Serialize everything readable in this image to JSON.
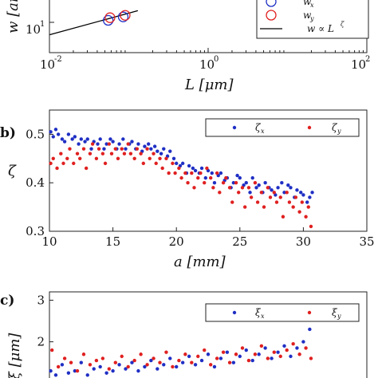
{
  "chart_data": [
    {
      "panel": "a",
      "type": "scatter",
      "title": "",
      "xlabel": "L [μm]",
      "ylabel": "w [ar",
      "xscale": "log",
      "yscale": "log",
      "xlim": [
        0.01,
        100
      ],
      "xticks": [
        0.01,
        1,
        100
      ],
      "xtick_labels": [
        "10",
        "10",
        "10"
      ],
      "xtick_exponents": [
        "-2",
        "0",
        "2"
      ],
      "ytick_labels": [
        "10"
      ],
      "ytick_exponents": [
        "1"
      ],
      "legend_position": "top-right",
      "series": [
        {
          "name": "w_x",
          "marker": "open-circle",
          "color": "#1f2fc4",
          "x": [
            0.055,
            0.085
          ],
          "y": [
            11,
            13
          ]
        },
        {
          "name": "w_y",
          "marker": "open-circle",
          "color": "#e02020",
          "x": [
            0.058,
            0.09
          ],
          "y": [
            12.5,
            14
          ]
        },
        {
          "name": "w ∝ L^ζ",
          "marker": "line",
          "color": "#000000"
        }
      ],
      "fit_line": {
        "x": [
          0.01,
          0.13
        ],
        "y": [
          5.5,
          17.5
        ]
      },
      "legend_labels": {
        "w_x": "w",
        "w_x_sub": "x",
        "w_y": "w",
        "w_y_sub": "y",
        "fit": "w ∝ L",
        "fit_sup": "ζ"
      }
    },
    {
      "panel": "b",
      "type": "scatter",
      "title": "",
      "xlabel": "a [mm]",
      "ylabel": "ζ",
      "xlim": [
        10,
        35
      ],
      "ylim": [
        0.3,
        0.55
      ],
      "xticks": [
        10,
        15,
        20,
        25,
        30,
        35
      ],
      "yticks": [
        0.3,
        0.4,
        0.5
      ],
      "xtick_labels": [
        "10",
        "15",
        "20",
        "25",
        "30",
        "35"
      ],
      "ytick_labels": [
        "0.3",
        "0.4",
        "0.5"
      ],
      "legend_position": "top-right",
      "legend_labels": {
        "a": "ζ",
        "a_sub": "x",
        "b": "ζ",
        "b_sub": "y"
      },
      "series": [
        {
          "name": "ζ_x",
          "color": "#1f2fc4",
          "x": [
            10.1,
            10.3,
            10.5,
            10.7,
            11.0,
            11.2,
            11.5,
            11.8,
            12.0,
            12.3,
            12.5,
            12.8,
            13.0,
            13.3,
            13.5,
            13.8,
            14.0,
            14.3,
            14.5,
            14.8,
            15.0,
            15.3,
            15.5,
            15.8,
            16.0,
            16.3,
            16.5,
            16.8,
            17.0,
            17.3,
            17.5,
            17.8,
            18.0,
            18.3,
            18.5,
            18.8,
            19.0,
            19.3,
            19.5,
            19.8,
            20.0,
            20.3,
            20.5,
            20.8,
            21.0,
            21.3,
            21.5,
            21.8,
            22.0,
            22.3,
            22.5,
            22.8,
            23.0,
            23.3,
            23.5,
            23.8,
            24.0,
            24.3,
            24.5,
            24.8,
            25.0,
            25.3,
            25.5,
            25.8,
            26.0,
            26.3,
            26.5,
            26.8,
            27.0,
            27.3,
            27.5,
            27.8,
            28.0,
            28.3,
            28.5,
            28.8,
            29.0,
            29.3,
            29.5,
            29.8,
            30.0,
            30.3,
            30.5,
            30.7
          ],
          "y": [
            0.505,
            0.495,
            0.51,
            0.5,
            0.49,
            0.485,
            0.5,
            0.49,
            0.495,
            0.48,
            0.49,
            0.485,
            0.49,
            0.47,
            0.485,
            0.48,
            0.49,
            0.47,
            0.48,
            0.49,
            0.485,
            0.47,
            0.48,
            0.49,
            0.47,
            0.48,
            0.485,
            0.47,
            0.48,
            0.465,
            0.475,
            0.48,
            0.47,
            0.475,
            0.465,
            0.46,
            0.47,
            0.455,
            0.465,
            0.45,
            0.44,
            0.435,
            0.44,
            0.42,
            0.435,
            0.43,
            0.425,
            0.42,
            0.43,
            0.41,
            0.425,
            0.42,
            0.4,
            0.415,
            0.42,
            0.405,
            0.41,
            0.39,
            0.4,
            0.415,
            0.41,
            0.395,
            0.4,
            0.38,
            0.41,
            0.39,
            0.395,
            0.38,
            0.4,
            0.39,
            0.385,
            0.375,
            0.39,
            0.4,
            0.38,
            0.395,
            0.39,
            0.37,
            0.385,
            0.38,
            0.375,
            0.36,
            0.37,
            0.38
          ]
        },
        {
          "name": "ζ_y",
          "color": "#e02020",
          "x": [
            10.1,
            10.3,
            10.6,
            10.9,
            11.1,
            11.4,
            11.6,
            11.9,
            12.2,
            12.4,
            12.7,
            12.9,
            13.2,
            13.4,
            13.7,
            13.9,
            14.2,
            14.4,
            14.7,
            14.9,
            15.2,
            15.4,
            15.7,
            15.9,
            16.2,
            16.4,
            16.7,
            16.9,
            17.2,
            17.4,
            17.7,
            17.9,
            18.2,
            18.4,
            18.7,
            18.9,
            19.2,
            19.4,
            19.7,
            19.9,
            20.2,
            20.4,
            20.7,
            20.9,
            21.2,
            21.4,
            21.7,
            21.9,
            22.2,
            22.4,
            22.7,
            22.9,
            23.2,
            23.4,
            23.7,
            23.9,
            24.2,
            24.4,
            24.7,
            24.9,
            25.2,
            25.4,
            25.7,
            25.9,
            26.2,
            26.4,
            26.7,
            26.9,
            27.2,
            27.4,
            27.7,
            27.9,
            28.2,
            28.4,
            28.7,
            28.9,
            29.2,
            29.4,
            29.7,
            29.9,
            30.2,
            30.4,
            30.6
          ],
          "y": [
            0.44,
            0.45,
            0.43,
            0.46,
            0.44,
            0.45,
            0.47,
            0.44,
            0.46,
            0.45,
            0.47,
            0.43,
            0.46,
            0.48,
            0.45,
            0.47,
            0.46,
            0.44,
            0.48,
            0.46,
            0.47,
            0.45,
            0.47,
            0.46,
            0.48,
            0.46,
            0.45,
            0.47,
            0.46,
            0.44,
            0.47,
            0.45,
            0.46,
            0.44,
            0.45,
            0.43,
            0.45,
            0.42,
            0.44,
            0.42,
            0.43,
            0.41,
            0.42,
            0.4,
            0.42,
            0.39,
            0.41,
            0.42,
            0.4,
            0.43,
            0.41,
            0.39,
            0.42,
            0.38,
            0.4,
            0.41,
            0.39,
            0.36,
            0.4,
            0.38,
            0.39,
            0.35,
            0.39,
            0.37,
            0.4,
            0.36,
            0.38,
            0.35,
            0.39,
            0.37,
            0.38,
            0.36,
            0.37,
            0.33,
            0.38,
            0.36,
            0.35,
            0.37,
            0.34,
            0.36,
            0.33,
            0.35,
            0.31
          ]
        }
      ]
    },
    {
      "panel": "c",
      "type": "scatter",
      "title": "",
      "xlabel": "",
      "ylabel": "ξ [μm]",
      "ylim": [
        1,
        3
      ],
      "yticks": [
        2,
        3
      ],
      "ytick_labels": [
        "2",
        "3"
      ],
      "legend_position": "top-right",
      "legend_labels": {
        "a": "ξ",
        "a_sub": "x",
        "b": "ξ",
        "b_sub": "y"
      },
      "series": [
        {
          "name": "ξ_x",
          "color": "#1f2fc4",
          "x": [
            10.1,
            10.5,
            11.0,
            11.5,
            12.0,
            12.5,
            13.0,
            13.5,
            14.0,
            14.5,
            15.0,
            15.5,
            16.0,
            16.5,
            17.0,
            17.5,
            18.0,
            18.5,
            19.0,
            19.5,
            20.0,
            20.5,
            21.0,
            21.5,
            22.0,
            22.5,
            23.0,
            23.5,
            24.0,
            24.5,
            25.0,
            25.5,
            26.0,
            26.5,
            27.0,
            27.5,
            28.0,
            28.5,
            29.0,
            29.5,
            30.0,
            30.5
          ],
          "y": [
            1.3,
            1.2,
            1.45,
            1.25,
            1.3,
            1.5,
            1.2,
            1.35,
            1.4,
            1.25,
            1.3,
            1.45,
            1.35,
            1.5,
            1.3,
            1.4,
            1.55,
            1.35,
            1.45,
            1.6,
            1.4,
            1.5,
            1.65,
            1.45,
            1.55,
            1.7,
            1.4,
            1.6,
            1.75,
            1.5,
            1.65,
            1.8,
            1.55,
            1.7,
            1.85,
            1.6,
            1.75,
            1.9,
            1.65,
            1.85,
            2.0,
            2.3
          ]
        },
        {
          "name": "ξ_y",
          "color": "#e02020",
          "x": [
            10.2,
            10.7,
            11.2,
            11.7,
            12.2,
            12.7,
            13.2,
            13.7,
            14.2,
            14.7,
            15.2,
            15.7,
            16.2,
            16.7,
            17.2,
            17.7,
            18.2,
            18.7,
            19.2,
            19.7,
            20.2,
            20.7,
            21.2,
            21.7,
            22.2,
            22.7,
            23.2,
            23.7,
            24.2,
            24.7,
            25.2,
            25.7,
            26.2,
            26.7,
            27.2,
            27.7,
            28.2,
            28.7,
            29.2,
            29.7,
            30.2,
            30.6
          ],
          "y": [
            1.8,
            1.4,
            1.6,
            1.5,
            1.3,
            1.7,
            1.45,
            1.55,
            1.6,
            1.35,
            1.5,
            1.65,
            1.4,
            1.55,
            1.7,
            1.45,
            1.6,
            1.5,
            1.75,
            1.4,
            1.55,
            1.7,
            1.5,
            1.65,
            1.8,
            1.45,
            1.6,
            1.75,
            1.5,
            1.7,
            1.85,
            1.55,
            1.7,
            1.9,
            1.6,
            1.75,
            1.65,
            1.8,
            1.95,
            1.7,
            1.85,
            1.6
          ]
        }
      ]
    }
  ],
  "panel_labels": {
    "a": "",
    "b": "b)",
    "c": "c)"
  }
}
